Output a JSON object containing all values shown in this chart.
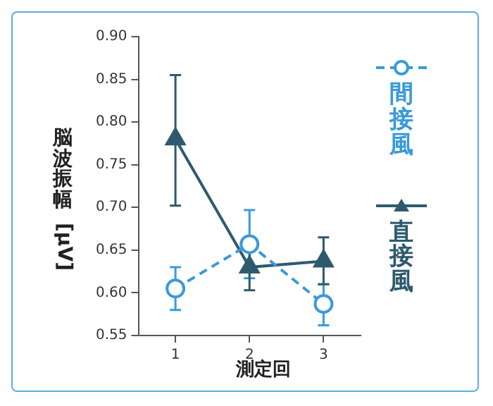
{
  "chart_data": {
    "type": "line",
    "xlabel": "測定回",
    "ylabel": "脳波振幅 [μV]",
    "categories": [
      "1",
      "2",
      "3"
    ],
    "series": [
      {
        "name": "間接風",
        "color": "#3a9ad9",
        "marker": "circle",
        "line_style": "dashed",
        "values": [
          0.605,
          0.657,
          0.587
        ],
        "errors": [
          [
            0.58,
            0.63
          ],
          [
            0.617,
            0.697
          ],
          [
            0.562,
            0.61
          ]
        ]
      },
      {
        "name": "直接風",
        "color": "#2e5a6e",
        "marker": "triangle",
        "line_style": "solid",
        "values": [
          0.78,
          0.63,
          0.637
        ],
        "errors": [
          [
            0.702,
            0.855
          ],
          [
            0.603,
            0.66
          ],
          [
            0.61,
            0.665
          ]
        ]
      }
    ],
    "ylim": [
      0.55,
      0.9
    ],
    "yticks": [
      0.55,
      {
        "value": 0.6,
        "label": "0.60"
      },
      0.65,
      {
        "value": 0.7,
        "label": "0.70"
      },
      0.75,
      {
        "value": 0.8,
        "label": "0.80"
      },
      0.85,
      {
        "value": 0.9,
        "label": "0.90"
      }
    ],
    "grid": false,
    "legend": "right"
  }
}
